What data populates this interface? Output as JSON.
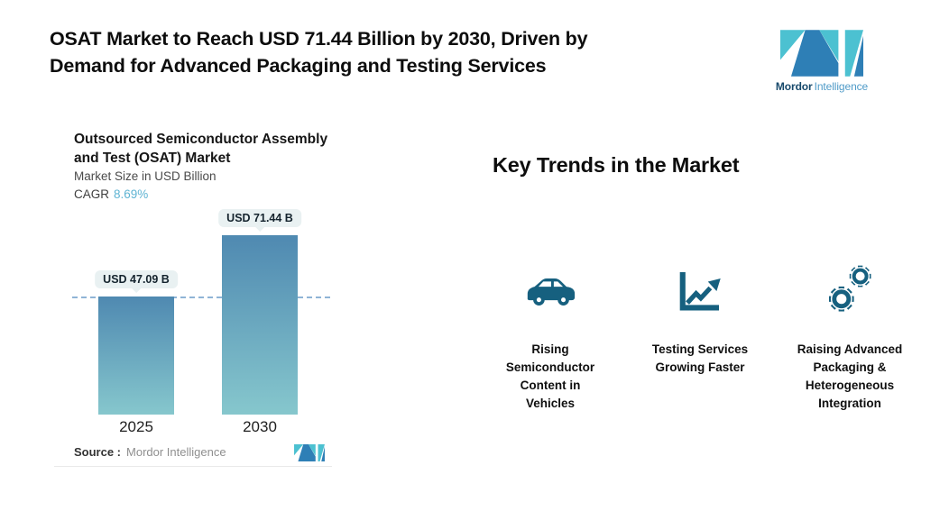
{
  "page": {
    "title": "OSAT Market to Reach USD 71.44 Billion by 2030, Driven by\nDemand for Advanced Packaging and Testing Services"
  },
  "brand": {
    "name_bold": "Mordor",
    "name_light": "Intelligence"
  },
  "chart": {
    "title": "Outsourced Semiconductor Assembly\nand Test (OSAT) Market",
    "subtitle": "Market Size in USD Billion",
    "cagr_label": "CAGR",
    "cagr_value": "8.69%",
    "source_label": "Source :",
    "source_value": "Mordor Intelligence"
  },
  "chart_data": {
    "type": "bar",
    "title": "Outsourced Semiconductor Assembly and Test (OSAT) Market",
    "ylabel": "Market Size in USD Billion",
    "cagr": "8.69%",
    "categories": [
      "2025",
      "2030"
    ],
    "values": [
      47.09,
      71.44
    ],
    "value_labels": [
      "USD 47.09 B",
      "USD 71.44 B"
    ],
    "reference_line_at": 47.09,
    "bar_gradient": [
      "#4f89b1",
      "#86c7cd"
    ],
    "grid": false,
    "legend": false
  },
  "trends": {
    "heading": "Key Trends in the Market",
    "items": [
      {
        "icon": "car-icon",
        "label": "Rising\nSemiconductor\nContent in\nVehicles"
      },
      {
        "icon": "line-chart-icon",
        "label": "Testing Services\nGrowing Faster"
      },
      {
        "icon": "gears-icon",
        "label": "Raising Advanced\nPackaging &\nHeterogeneous\nIntegration"
      }
    ]
  },
  "colors": {
    "logo_teal": "#4cc1d1",
    "logo_blue": "#2e7fb6",
    "icon_blue": "#16607f",
    "cagr_value": "#5fb4d3",
    "dashed_line": "#8fb4d6",
    "badge_bg": "#e9f1f2"
  }
}
